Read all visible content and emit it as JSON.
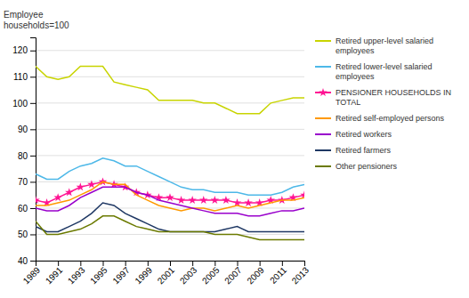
{
  "chart_data": {
    "type": "line",
    "y_label": "Employee\nhouseholds=100",
    "x": [
      1989,
      1990,
      1991,
      1992,
      1993,
      1994,
      1995,
      1996,
      1997,
      1998,
      1999,
      2000,
      2001,
      2002,
      2003,
      2004,
      2005,
      2006,
      2007,
      2008,
      2009,
      2010,
      2011,
      2012,
      2013
    ],
    "series": [
      {
        "name": "Retired upper-level salaried\nemployees",
        "color": "#c8d400",
        "values": [
          114,
          110,
          109,
          110,
          114,
          114,
          114,
          108,
          107,
          106,
          105,
          101,
          101,
          101,
          101,
          100,
          100,
          98,
          96,
          96,
          96,
          100,
          101,
          102,
          102
        ]
      },
      {
        "name": "Retired lower-level salaried\nemployees",
        "color": "#4db8e8",
        "values": [
          73,
          71,
          71,
          74,
          76,
          77,
          79,
          78,
          76,
          76,
          74,
          72,
          70,
          68,
          67,
          67,
          66,
          66,
          66,
          65,
          65,
          65,
          66,
          68,
          69
        ]
      },
      {
        "name": "PENSIONER HOUSEHOLDS IN\nTOTAL",
        "color": "#ff1493",
        "marker": "star",
        "values": [
          63,
          62,
          64,
          66,
          68,
          69,
          70,
          69,
          68,
          66,
          65,
          64,
          64,
          63,
          63,
          63,
          63,
          63,
          62,
          62,
          62,
          63,
          63,
          64,
          65
        ]
      },
      {
        "name": "Retired self-employed persons",
        "color": "#ff9900",
        "values": [
          61,
          61,
          62,
          63,
          65,
          67,
          70,
          69,
          69,
          65,
          63,
          61,
          60,
          59,
          60,
          60,
          59,
          60,
          61,
          60,
          61,
          62,
          63,
          63,
          64
        ]
      },
      {
        "name": "Retired workers",
        "color": "#9900cc",
        "values": [
          60,
          59,
          59,
          61,
          64,
          66,
          68,
          68,
          68,
          66,
          65,
          63,
          62,
          61,
          60,
          59,
          58,
          58,
          58,
          57,
          57,
          58,
          59,
          59,
          60
        ]
      },
      {
        "name": "Retired farmers",
        "color": "#1f3864",
        "values": [
          53,
          51,
          51,
          53,
          55,
          58,
          62,
          61,
          58,
          56,
          54,
          52,
          51,
          51,
          51,
          51,
          51,
          52,
          53,
          51,
          51,
          51,
          51,
          51,
          51
        ]
      },
      {
        "name": "Other pensioners",
        "color": "#6b7a00",
        "values": [
          55,
          50,
          50,
          51,
          52,
          54,
          57,
          57,
          55,
          53,
          52,
          51,
          51,
          51,
          51,
          51,
          50,
          50,
          50,
          49,
          48,
          48,
          48,
          48,
          48
        ]
      }
    ],
    "xlim": [
      1989,
      2013
    ],
    "xticks": [
      1989,
      1991,
      1993,
      1995,
      1997,
      1999,
      2001,
      2003,
      2005,
      2007,
      2009,
      2011,
      2013
    ],
    "ylim": [
      40,
      125
    ],
    "yticks": [
      40,
      50,
      60,
      70,
      80,
      90,
      100,
      110,
      120
    ],
    "grid": true,
    "legend": "right"
  }
}
